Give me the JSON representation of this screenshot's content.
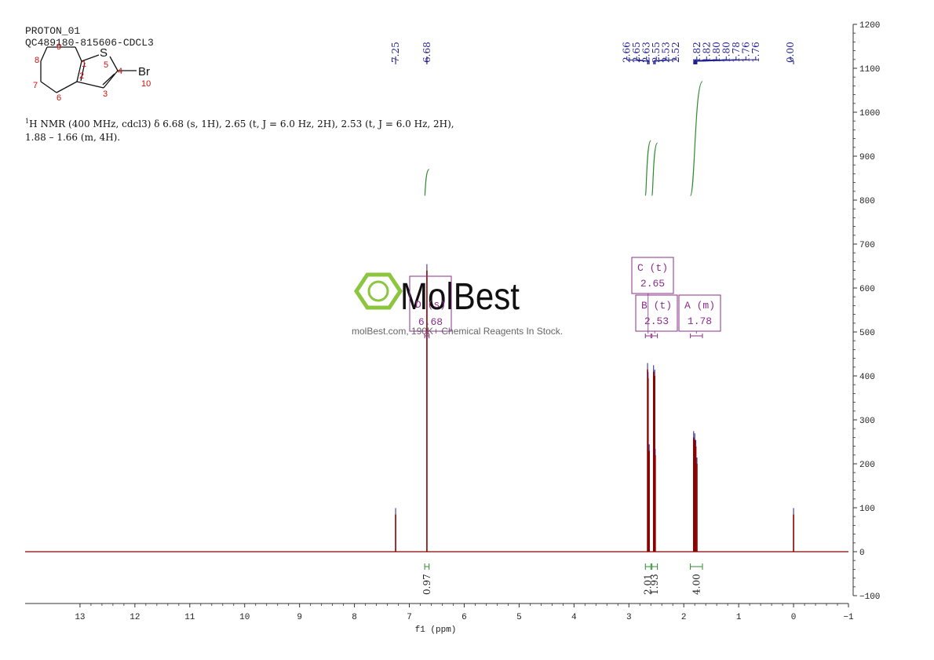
{
  "header": {
    "line1": "PROTON_01",
    "line2": "QC489180-815606-CDCL3"
  },
  "structure": {
    "atoms": [
      "S",
      "Br",
      "1",
      "2",
      "3",
      "4",
      "5",
      "6",
      "7",
      "8",
      "9",
      "10"
    ]
  },
  "nmr_text": {
    "line1_sup": "1",
    "line1": "H NMR (400 MHz, cdcl3) δ 6.68 (s, 1H), 2.65 (t, J = 6.0 Hz, 2H), 2.53 (t, J = 6.0 Hz, 2H),",
    "line2": "1.88 – 1.66 (m, 4H)."
  },
  "watermark": {
    "brand": "MolBest",
    "tagline": "molBest.com, 190K+ Chemical Reagents In Stock."
  },
  "colors": {
    "spectrum": "#8b0000",
    "peak_labels": "#1f1f8f",
    "integrals": "#2e8b2e",
    "multiplets": "#8b2f8b",
    "watermark": "#8cc63f"
  },
  "chart_data": {
    "type": "line",
    "xlabel": "f1 (ppm)",
    "xlim": [
      14,
      -1
    ],
    "ylim": [
      -100,
      1200
    ],
    "x_ticks": [
      13,
      12,
      11,
      10,
      9,
      8,
      7,
      6,
      5,
      4,
      3,
      2,
      1,
      0,
      -1
    ],
    "y_ticks": [
      1200,
      1100,
      1000,
      900,
      800,
      700,
      600,
      500,
      400,
      300,
      200,
      100,
      0,
      -100
    ],
    "peaks": [
      {
        "ppm": 7.25,
        "height": 85
      },
      {
        "ppm": 6.68,
        "height": 640
      },
      {
        "ppm": 2.66,
        "height": 415
      },
      {
        "ppm": 2.65,
        "height": 395
      },
      {
        "ppm": 2.63,
        "height": 230
      },
      {
        "ppm": 2.55,
        "height": 410
      },
      {
        "ppm": 2.53,
        "height": 400
      },
      {
        "ppm": 2.52,
        "height": 220
      },
      {
        "ppm": 1.82,
        "height": 260
      },
      {
        "ppm": 1.8,
        "height": 255
      },
      {
        "ppm": 1.78,
        "height": 240
      },
      {
        "ppm": 1.76,
        "height": 200
      },
      {
        "ppm": 0.0,
        "height": 85
      }
    ],
    "peak_label_groups": [
      {
        "labels": [
          "7.25"
        ],
        "ppm": [
          7.25
        ]
      },
      {
        "labels": [
          "6.68"
        ],
        "ppm": [
          6.68
        ]
      },
      {
        "labels": [
          "2.66",
          "2.65",
          "2.63",
          "2.55",
          "2.53",
          "2.52"
        ],
        "ppm": [
          2.66,
          2.65,
          2.63,
          2.55,
          2.53,
          2.52
        ]
      },
      {
        "labels": [
          "1.82",
          "1.82",
          "1.80",
          "1.80",
          "1.78",
          "1.76",
          "1.76",
          "0.00"
        ],
        "ppm": [
          1.82,
          1.81,
          1.8,
          1.79,
          1.78,
          1.77,
          1.76,
          0.0
        ]
      }
    ],
    "integrals": [
      {
        "from": 6.72,
        "to": 6.64,
        "value": "0.97",
        "y_start": 810,
        "y_end": 870
      },
      {
        "from": 2.7,
        "to": 2.6,
        "value": "2.01",
        "y_start": 810,
        "y_end": 935
      },
      {
        "from": 2.58,
        "to": 2.48,
        "value": "1.93",
        "y_start": 810,
        "y_end": 930
      },
      {
        "from": 1.88,
        "to": 1.66,
        "value": "4.00",
        "y_start": 810,
        "y_end": 1070
      }
    ],
    "multiplets": [
      {
        "id": "D",
        "type": "s",
        "shift": "6.68",
        "from": 6.72,
        "to": 6.64
      },
      {
        "id": "C",
        "type": "t",
        "shift": "2.65",
        "from": 2.7,
        "to": 2.6
      },
      {
        "id": "B",
        "type": "t",
        "shift": "2.53",
        "from": 2.58,
        "to": 2.48
      },
      {
        "id": "A",
        "type": "m",
        "shift": "1.78",
        "from": 1.88,
        "to": 1.66
      }
    ]
  }
}
